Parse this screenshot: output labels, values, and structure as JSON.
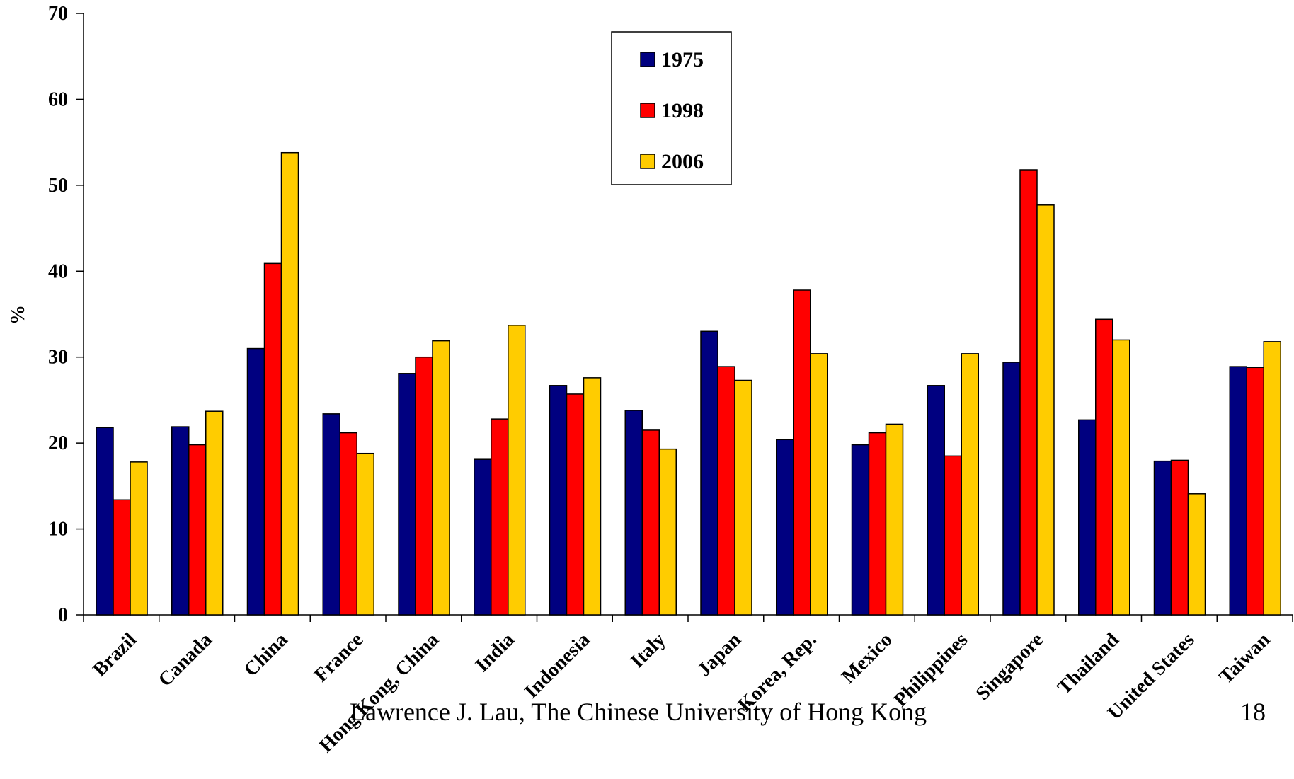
{
  "chart_data": {
    "type": "bar",
    "ylabel": "%",
    "ylim": [
      0,
      70
    ],
    "yticks": [
      "0",
      "10",
      "20",
      "30",
      "40",
      "50",
      "60",
      "70"
    ],
    "categories": [
      "Brazil",
      "Canada",
      "China",
      "France",
      "Hong Kong, China",
      "India",
      "Indonesia",
      "Italy",
      "Japan",
      "Korea, Rep.",
      "Mexico",
      "Philippines",
      "Singapore",
      "Thailand",
      "United States",
      "Taiwan"
    ],
    "series": [
      {
        "name": "1975",
        "color": "#000080",
        "values": [
          21.8,
          21.9,
          31.0,
          23.4,
          28.1,
          18.1,
          26.7,
          23.8,
          33.0,
          20.4,
          19.8,
          26.7,
          29.4,
          22.7,
          17.9,
          28.9
        ]
      },
      {
        "name": "1998",
        "color": "#FF0000",
        "values": [
          13.4,
          19.8,
          40.9,
          21.2,
          30.0,
          22.8,
          25.7,
          21.5,
          28.9,
          37.8,
          21.2,
          18.5,
          51.8,
          34.4,
          18.0,
          28.8
        ]
      },
      {
        "name": "2006",
        "color": "#FFCC00",
        "values": [
          17.8,
          23.7,
          53.8,
          18.8,
          31.9,
          33.7,
          27.6,
          19.3,
          27.3,
          30.4,
          22.2,
          30.4,
          47.7,
          32.0,
          14.1,
          31.8
        ]
      }
    ],
    "legend_position": "top-center",
    "grid": false
  },
  "footer": {
    "credit": "Lawrence J. Lau, The Chinese University of Hong Kong",
    "page_number": "18"
  }
}
